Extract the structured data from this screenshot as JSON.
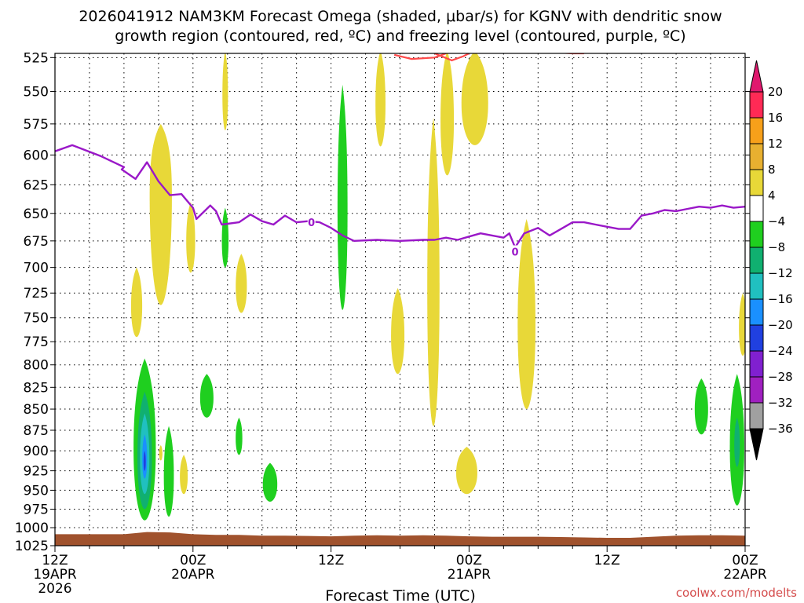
{
  "chart_data": {
    "type": "heatmap",
    "title_line1": "2026041912 NAM3KM Forecast Omega (shaded, μbar/s) for KGNV with dendritic snow",
    "title_line2": "growth region (contoured, red, ºC) and freezing level (contoured, purple, ºC)",
    "xlabel": "Forecast Time (UTC)",
    "credit": "coolwx.com/modelts",
    "x_unit": "forecast hour",
    "xlim": [
      0,
      60
    ],
    "ylim_hpa": [
      1025,
      520
    ],
    "y_scale": "log-pressure",
    "grid": "dotted",
    "y_ticks": [
      525,
      550,
      575,
      600,
      625,
      650,
      675,
      700,
      725,
      750,
      775,
      800,
      825,
      850,
      875,
      900,
      925,
      950,
      975,
      1000,
      1025
    ],
    "x_ticks": [
      {
        "hour": 0,
        "lines": [
          "12Z",
          "19APR",
          "2026"
        ]
      },
      {
        "hour": 12,
        "lines": [
          "00Z",
          "20APR"
        ]
      },
      {
        "hour": 24,
        "lines": [
          "12Z"
        ]
      },
      {
        "hour": 36,
        "lines": [
          "00Z",
          "21APR"
        ]
      },
      {
        "hour": 48,
        "lines": [
          "12Z"
        ]
      },
      {
        "hour": 60,
        "lines": [
          "00Z",
          "22APR"
        ]
      }
    ],
    "colorbar": {
      "labels": [
        "20",
        "16",
        "12",
        "8",
        "4",
        "−4",
        "−8",
        "−12",
        "−16",
        "−20",
        "−24",
        "−28",
        "−32",
        "−36"
      ],
      "colors": [
        "#ff2a55",
        "#f7a01a",
        "#e8b030",
        "#e8d838",
        "#ffffff",
        "#1fcf1f",
        "#10b070",
        "#20c0c0",
        "#1a90ff",
        "#2040e0",
        "#8020d0",
        "#a020c0",
        "#a0a0a0",
        "#000000"
      ],
      "top_cap_color": "#e0186e",
      "bottom_cap_color": "#000000"
    },
    "freezing_level": {
      "color": "#9a18c8",
      "label": "0",
      "points": [
        [
          0,
          597
        ],
        [
          1.5,
          592
        ],
        [
          4,
          601
        ],
        [
          6,
          610
        ],
        [
          5.8,
          612
        ],
        [
          7,
          620
        ],
        [
          8,
          606
        ],
        [
          9,
          622
        ],
        [
          10,
          634
        ],
        [
          11,
          633
        ],
        [
          12,
          645
        ],
        [
          12.3,
          655
        ],
        [
          13,
          648
        ],
        [
          13.5,
          643
        ],
        [
          14,
          648
        ],
        [
          14.5,
          660
        ],
        [
          16,
          658
        ],
        [
          17,
          651
        ],
        [
          18,
          657
        ],
        [
          19,
          660
        ],
        [
          20,
          652
        ],
        [
          21,
          658
        ],
        [
          22,
          657
        ],
        [
          23,
          658
        ],
        [
          24,
          663
        ],
        [
          25,
          670
        ],
        [
          26,
          675
        ],
        [
          28,
          674
        ],
        [
          30,
          675
        ],
        [
          32,
          674
        ],
        [
          33,
          674
        ],
        [
          34,
          672
        ],
        [
          35,
          674
        ],
        [
          36,
          671
        ],
        [
          37,
          668
        ],
        [
          38,
          670
        ],
        [
          39,
          672
        ],
        [
          39.5,
          668
        ],
        [
          40,
          681
        ],
        [
          40.8,
          668
        ],
        [
          42,
          663
        ],
        [
          43,
          670
        ],
        [
          44,
          664
        ],
        [
          45,
          658
        ],
        [
          46,
          658
        ],
        [
          47,
          660
        ],
        [
          48,
          662
        ],
        [
          49,
          664
        ],
        [
          50,
          664
        ],
        [
          51,
          652
        ],
        [
          52,
          650
        ],
        [
          53,
          647
        ],
        [
          54,
          648
        ],
        [
          55,
          646
        ],
        [
          56,
          644
        ],
        [
          57,
          645
        ],
        [
          58,
          643
        ],
        [
          59,
          645
        ],
        [
          60,
          644
        ]
      ],
      "label_positions": [
        [
          22.3,
          658
        ],
        [
          40.0,
          685
        ]
      ]
    },
    "dendritic_growth_contour": {
      "color": "#ff4a4a",
      "segments": [
        [
          [
            29.5,
            523
          ],
          [
            31,
            526
          ],
          [
            33,
            525
          ],
          [
            34,
            522
          ]
        ],
        [
          [
            33,
            522
          ],
          [
            34.5,
            527
          ],
          [
            35.5,
            524
          ],
          [
            36,
            522
          ]
        ],
        [
          [
            43,
            521
          ],
          [
            45,
            522
          ],
          [
            46,
            522
          ]
        ]
      ]
    },
    "omega_regions": [
      {
        "value": 6,
        "cx": 9.2,
        "p_top": 575,
        "p_bot": 737,
        "w": 1.0,
        "pmax": 620
      },
      {
        "value": 6,
        "cx": 7.1,
        "p_top": 700,
        "p_bot": 770,
        "w": 0.5
      },
      {
        "value": 6,
        "cx": 11.8,
        "p_top": 640,
        "p_bot": 705,
        "w": 0.4
      },
      {
        "value": 6,
        "cx": 16.2,
        "p_top": 687,
        "p_bot": 745,
        "w": 0.5
      },
      {
        "value": 6,
        "cx": 14.8,
        "p_top": 520,
        "p_bot": 580,
        "w": 0.25
      },
      {
        "value": 6,
        "cx": 28.3,
        "p_top": 520,
        "p_bot": 593,
        "w": 0.45
      },
      {
        "value": 6,
        "cx": 34.1,
        "p_top": 520,
        "p_bot": 617,
        "w": 0.6
      },
      {
        "value": 6,
        "cx": 36.5,
        "p_top": 520,
        "p_bot": 592,
        "w": 1.2
      },
      {
        "value": 6,
        "cx": 29.8,
        "p_top": 720,
        "p_bot": 810,
        "w": 0.6
      },
      {
        "value": 6,
        "cx": 32.9,
        "p_top": 570,
        "p_bot": 870,
        "w": 0.55
      },
      {
        "value": 6,
        "cx": 41.0,
        "p_top": 655,
        "p_bot": 850,
        "w": 0.8
      },
      {
        "value": 6,
        "cx": 35.8,
        "p_top": 895,
        "p_bot": 955,
        "w": 0.95
      },
      {
        "value": 6,
        "cx": 11.2,
        "p_top": 905,
        "p_bot": 955,
        "w": 0.35
      },
      {
        "value": 6,
        "cx": 9.2,
        "p_top": 893,
        "p_bot": 912,
        "w": 0.15
      },
      {
        "value": 6,
        "cx": 59.8,
        "p_top": 725,
        "p_bot": 790,
        "w": 0.35
      },
      {
        "value": -6,
        "cx": 25.0,
        "p_top": 545,
        "p_bot": 742,
        "w": 0.45
      },
      {
        "value": -6,
        "cx": 14.8,
        "p_top": 645,
        "p_bot": 700,
        "w": 0.3
      },
      {
        "value": -6,
        "cx": 13.2,
        "p_top": 810,
        "p_bot": 860,
        "w": 0.6
      },
      {
        "value": -6,
        "cx": 16.0,
        "p_top": 860,
        "p_bot": 905,
        "w": 0.3
      },
      {
        "value": -6,
        "cx": 18.7,
        "p_top": 915,
        "p_bot": 965,
        "w": 0.65
      },
      {
        "value": -6,
        "cx": 7.8,
        "p_top": 793,
        "p_bot": 990,
        "w": 1.0
      },
      {
        "value": -10,
        "cx": 7.8,
        "p_top": 830,
        "p_bot": 975,
        "w": 0.65
      },
      {
        "value": -14,
        "cx": 7.8,
        "p_top": 855,
        "p_bot": 955,
        "w": 0.42
      },
      {
        "value": -18,
        "cx": 7.8,
        "p_top": 880,
        "p_bot": 935,
        "w": 0.22
      },
      {
        "value": -22,
        "cx": 7.8,
        "p_top": 900,
        "p_bot": 925,
        "w": 0.1
      },
      {
        "value": -6,
        "cx": 9.9,
        "p_top": 870,
        "p_bot": 985,
        "w": 0.45
      },
      {
        "value": -6,
        "cx": 56.2,
        "p_top": 815,
        "p_bot": 880,
        "w": 0.6
      },
      {
        "value": -6,
        "cx": 59.3,
        "p_top": 810,
        "p_bot": 970,
        "w": 0.65
      },
      {
        "value": -10,
        "cx": 59.3,
        "p_top": 860,
        "p_bot": 920,
        "w": 0.25
      }
    ],
    "terrain": {
      "color": "#a0522d",
      "surface_pressure": [
        [
          0,
          1009
        ],
        [
          3,
          1009
        ],
        [
          6,
          1009
        ],
        [
          8,
          1006
        ],
        [
          10,
          1006.5
        ],
        [
          12,
          1009
        ],
        [
          14,
          1010
        ],
        [
          16,
          1010
        ],
        [
          18,
          1011
        ],
        [
          20,
          1011
        ],
        [
          22,
          1011.5
        ],
        [
          24,
          1012
        ],
        [
          26,
          1011
        ],
        [
          28,
          1010.5
        ],
        [
          30,
          1011
        ],
        [
          32,
          1010.5
        ],
        [
          34,
          1011
        ],
        [
          36,
          1012
        ],
        [
          38,
          1012.5
        ],
        [
          40,
          1012.5
        ],
        [
          42,
          1012.5
        ],
        [
          44,
          1013
        ],
        [
          46,
          1013.5
        ],
        [
          48,
          1014
        ],
        [
          50,
          1014
        ],
        [
          52,
          1012.5
        ],
        [
          54,
          1011
        ],
        [
          56,
          1010.5
        ],
        [
          58,
          1010.5
        ],
        [
          60,
          1011
        ]
      ]
    }
  }
}
